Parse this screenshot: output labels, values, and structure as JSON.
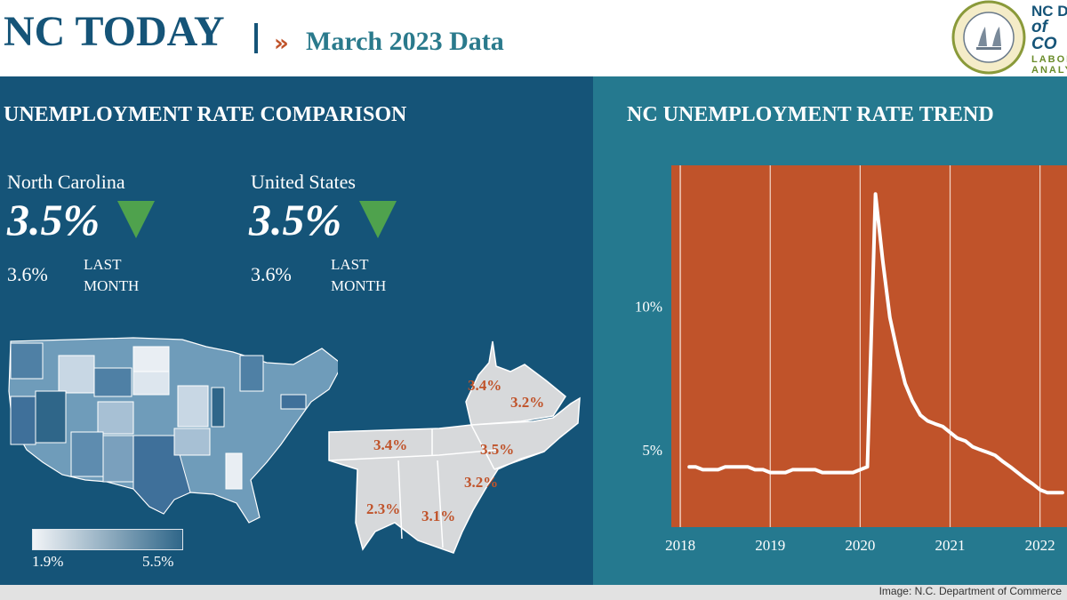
{
  "header": {
    "title": "NC TODAY",
    "chevrons": "»",
    "subtitle": "March 2023 Data",
    "logo_line1": "NC D",
    "logo_line2": "of CO",
    "logo_line3a": "LABOR",
    "logo_line3b": "ANALY"
  },
  "left_panel": {
    "title": "UNEMPLOYMENT RATE COMPARISON",
    "nc": {
      "label": "North Carolina",
      "value": "3.5%",
      "prev_value": "3.6%",
      "prev_label_1": "LAST",
      "prev_label_2": "MONTH",
      "trend": "down-triangle-icon"
    },
    "us": {
      "label": "United States",
      "value": "3.5%",
      "prev_value": "3.6%",
      "prev_label_1": "LAST",
      "prev_label_2": "MONTH",
      "trend": "down-triangle-icon"
    },
    "legend": {
      "min_label": "1.9%",
      "max_label": "5.5%",
      "low_color": "#f2f4f7",
      "high_color": "#2f6689"
    },
    "regional_labels": [
      "3.4%",
      "3.2%",
      "3.4%",
      "3.5%",
      "3.2%",
      "2.3%",
      "3.1%"
    ]
  },
  "right_panel": {
    "title": "NC UNEMPLOYMENT RATE TREND"
  },
  "colors": {
    "navy": "#155478",
    "teal": "#25798f",
    "orange": "#c0532a",
    "green": "#4fa24d"
  },
  "footer": {
    "credit": "Image: N.C. Department of Commerce"
  },
  "chart_data": {
    "type": "line",
    "title": "NC UNEMPLOYMENT RATE TREND",
    "x_tick_labels": [
      "2018",
      "2019",
      "2020",
      "2021",
      "2022"
    ],
    "y_tick_labels": [
      "5%",
      "10%"
    ],
    "ylim": [
      2.3,
      14.9
    ],
    "xlim": [
      2017.9,
      2022.3
    ],
    "grid": "vertical lines at each year",
    "series": [
      {
        "x": [
          2018.1,
          2018.17,
          2018.25,
          2018.33,
          2018.42,
          2018.5,
          2018.58,
          2018.67,
          2018.75,
          2018.83,
          2018.92,
          2019.0,
          2019.08,
          2019.17,
          2019.25,
          2019.33,
          2019.42,
          2019.5,
          2019.58,
          2019.67,
          2019.75,
          2019.83,
          2019.92,
          2020.0,
          2020.08,
          2020.17,
          2020.25,
          2020.33,
          2020.42,
          2020.5,
          2020.58,
          2020.67,
          2020.75,
          2020.83,
          2020.92,
          2021.0,
          2021.08,
          2021.17,
          2021.25,
          2021.33,
          2021.42,
          2021.5,
          2021.58,
          2021.67,
          2021.75,
          2021.83,
          2021.92,
          2022.0,
          2022.08,
          2022.17,
          2022.25
        ],
        "values": [
          4.4,
          4.4,
          4.3,
          4.3,
          4.3,
          4.4,
          4.4,
          4.4,
          4.4,
          4.3,
          4.3,
          4.2,
          4.2,
          4.2,
          4.3,
          4.3,
          4.3,
          4.3,
          4.2,
          4.2,
          4.2,
          4.2,
          4.2,
          4.3,
          4.4,
          13.9,
          11.6,
          9.6,
          8.3,
          7.3,
          6.7,
          6.2,
          6.0,
          5.9,
          5.8,
          5.6,
          5.4,
          5.3,
          5.1,
          5.0,
          4.9,
          4.8,
          4.6,
          4.4,
          4.2,
          4.0,
          3.8,
          3.6,
          3.5,
          3.5,
          3.5
        ]
      }
    ]
  }
}
